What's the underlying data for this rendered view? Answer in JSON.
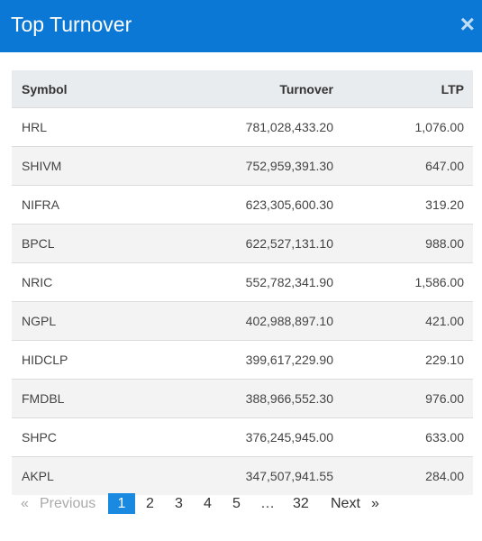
{
  "header": {
    "title": "Top Turnover",
    "close": "×"
  },
  "table": {
    "columns": [
      "Symbol",
      "Turnover",
      "LTP"
    ],
    "rows": [
      [
        "HRL",
        "781,028,433.20",
        "1,076.00"
      ],
      [
        "SHIVM",
        "752,959,391.30",
        "647.00"
      ],
      [
        "NIFRA",
        "623,305,600.30",
        "319.20"
      ],
      [
        "BPCL",
        "622,527,131.10",
        "988.00"
      ],
      [
        "NRIC",
        "552,782,341.90",
        "1,586.00"
      ],
      [
        "NGPL",
        "402,988,897.10",
        "421.00"
      ],
      [
        "HIDCLP",
        "399,617,229.90",
        "229.10"
      ],
      [
        "FMDBL",
        "388,966,552.30",
        "976.00"
      ],
      [
        "SHPC",
        "376,245,945.00",
        "633.00"
      ],
      [
        "AKPL",
        "347,507,941.55",
        "284.00"
      ]
    ]
  },
  "pagination": {
    "prev_icon": "«",
    "previous": "Previous",
    "pages": [
      "1",
      "2",
      "3",
      "4",
      "5",
      "…",
      "32"
    ],
    "next": "Next",
    "next_icon": "»"
  }
}
